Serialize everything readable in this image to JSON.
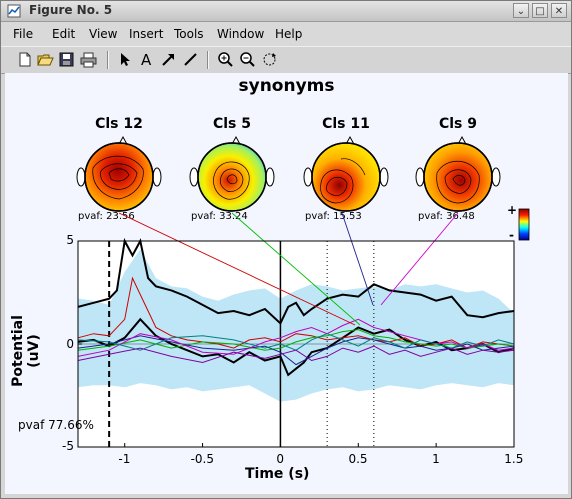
{
  "window": {
    "title": "Figure No. 5",
    "minimize_glyph": "⌄",
    "maximize_glyph": "□",
    "close_glyph": "✕"
  },
  "menubar": {
    "items": [
      "File",
      "Edit",
      "View",
      "Insert",
      "Tools",
      "Window",
      "Help"
    ]
  },
  "toolbar": {
    "tools": [
      "new-file-icon",
      "open-folder-icon",
      "save-icon",
      "print-icon",
      "arrow-pointer-icon",
      "text-icon",
      "draw-arrow-icon",
      "draw-line-icon",
      "zoom-in-icon",
      "zoom-out-icon",
      "rotate-icon"
    ]
  },
  "figure": {
    "title": "synonyms",
    "clusters": [
      {
        "name": "Cls 12",
        "pvaf": "pvaf:  23.56",
        "line_color": "#d00000"
      },
      {
        "name": "Cls 5",
        "pvaf": "pvaf:  33.24",
        "line_color": "#00c000"
      },
      {
        "name": "Cls 11",
        "pvaf": "pvaf:  15.53",
        "line_color": "#202090"
      },
      {
        "name": "Cls 9",
        "pvaf": "pvaf:  36.48",
        "line_color": "#d000d0"
      }
    ],
    "colorbar": {
      "plus": "+",
      "minus": "-"
    },
    "pvaf_total": "pvaf 77.66%"
  },
  "chart_data": {
    "type": "line",
    "xlabel": "Time (s)",
    "ylabel": "Potential (uV)",
    "xlim": [
      -1.3,
      1.5
    ],
    "ylim": [
      -5,
      5
    ],
    "xticks": [
      "-1",
      "-0.5",
      "0",
      "0.5",
      "1",
      "1.5"
    ],
    "xtick_values": [
      -1,
      -0.5,
      0,
      0.5,
      1,
      1.5
    ],
    "yticks": [
      "5",
      "0",
      "-5"
    ],
    "ytick_values": [
      5,
      0,
      -5
    ],
    "vertical_markers": [
      {
        "x": -1.1,
        "style": "dashed"
      },
      {
        "x": 0,
        "style": "solid"
      },
      {
        "x": 0.3,
        "style": "dotted"
      },
      {
        "x": 0.6,
        "style": "dotted"
      }
    ],
    "envelope_upper": {
      "x": [
        -1.3,
        -1.2,
        -1.1,
        -1.0,
        -0.9,
        -0.8,
        -0.7,
        -0.6,
        -0.5,
        -0.4,
        -0.3,
        -0.2,
        -0.1,
        0,
        0.1,
        0.2,
        0.3,
        0.4,
        0.5,
        0.6,
        0.7,
        0.8,
        0.9,
        1.0,
        1.1,
        1.2,
        1.3,
        1.4,
        1.5
      ],
      "y": [
        2.2,
        2.1,
        1.9,
        3.5,
        4.6,
        3.2,
        2.8,
        2.7,
        2.3,
        2.1,
        2.4,
        2.6,
        2.7,
        2.2,
        2.6,
        2.9,
        2.8,
        2.6,
        2.7,
        2.8,
        2.6,
        2.9,
        2.8,
        2.9,
        2.7,
        2.5,
        2.6,
        2.2,
        1.5
      ]
    },
    "envelope_lower": {
      "y": [
        -2.1,
        -2.0,
        -2.0,
        -2.1,
        -1.9,
        -2.0,
        -2.2,
        -2.1,
        -2.3,
        -2.2,
        -2.1,
        -2.0,
        -2.4,
        -2.8,
        -2.7,
        -2.4,
        -2.2,
        -2.1,
        -2.3,
        -2.2,
        -2.0,
        -2.1,
        -2.2,
        -2.0,
        -1.9,
        -2.0,
        -2.1,
        -1.9,
        -2.0
      ]
    },
    "series": [
      {
        "color": "#000000",
        "width": 2,
        "x": [
          -1.3,
          -1.2,
          -1.1,
          -1.05,
          -1.0,
          -0.95,
          -0.9,
          -0.85,
          -0.8,
          -0.7,
          -0.6,
          -0.5,
          -0.4,
          -0.3,
          -0.2,
          -0.1,
          0,
          0.05,
          0.1,
          0.15,
          0.2,
          0.3,
          0.4,
          0.5,
          0.6,
          0.7,
          0.8,
          0.9,
          1.0,
          1.1,
          1.2,
          1.3,
          1.4,
          1.5
        ],
        "y": [
          1.8,
          2.0,
          2.2,
          2.6,
          5.2,
          4.3,
          5.6,
          3.2,
          2.8,
          2.6,
          2.3,
          1.9,
          1.5,
          1.6,
          1.4,
          1.7,
          1.0,
          1.8,
          2.0,
          1.4,
          1.7,
          2.2,
          2.4,
          2.3,
          2.9,
          2.6,
          2.5,
          2.4,
          2.1,
          2.3,
          1.4,
          1.3,
          1.5,
          1.6
        ]
      },
      {
        "color": "#000000",
        "width": 2,
        "x": [
          -1.3,
          -1.2,
          -1.1,
          -1.0,
          -0.9,
          -0.8,
          -0.7,
          -0.6,
          -0.5,
          -0.4,
          -0.3,
          -0.2,
          -0.1,
          0,
          0.05,
          0.1,
          0.15,
          0.2,
          0.3,
          0.4,
          0.5,
          0.6,
          0.7,
          0.8,
          0.9,
          1.0,
          1.1,
          1.2,
          1.3,
          1.4,
          1.5
        ],
        "y": [
          0.1,
          0.2,
          -0.1,
          0.3,
          1.2,
          0.4,
          0.0,
          -0.3,
          -0.6,
          -0.5,
          -0.9,
          -0.4,
          -0.8,
          -0.6,
          -1.5,
          -1.2,
          -0.9,
          -0.4,
          -0.2,
          0.3,
          0.8,
          0.5,
          0.7,
          0.2,
          -0.1,
          0.1,
          -0.3,
          -0.2,
          0.0,
          -0.4,
          -0.2
        ]
      },
      {
        "color": "#d00000",
        "width": 1,
        "x": [
          -1.3,
          -1.2,
          -1.1,
          -1.0,
          -0.95,
          -0.9,
          -0.85,
          -0.8,
          -0.7,
          -0.6,
          -0.5,
          -0.4,
          -0.3,
          -0.2,
          -0.1,
          0,
          0.1,
          0.2,
          0.3,
          0.4,
          0.5,
          0.6,
          0.7,
          0.8,
          0.9,
          1.0,
          1.1,
          1.2,
          1.3,
          1.4,
          1.5
        ],
        "y": [
          0.3,
          0.5,
          0.4,
          1.2,
          3.2,
          2.4,
          1.6,
          0.8,
          0.4,
          0.2,
          0.1,
          0.0,
          -0.2,
          0.2,
          0.3,
          0.1,
          0.5,
          0.4,
          0.2,
          0.3,
          0.4,
          0.2,
          0.1,
          0.3,
          -0.1,
          0.0,
          0.2,
          -0.2,
          0.1,
          0.0,
          -0.1
        ]
      },
      {
        "color": "#00b000",
        "width": 1,
        "x": [
          -1.3,
          -1.1,
          -0.9,
          -0.7,
          -0.5,
          -0.3,
          -0.1,
          0,
          0.1,
          0.2,
          0.3,
          0.4,
          0.5,
          0.6,
          0.7,
          0.8,
          0.9,
          1.0,
          1.1,
          1.2,
          1.3,
          1.4,
          1.5
        ],
        "y": [
          -0.3,
          -0.1,
          0.2,
          -0.2,
          0.1,
          0.0,
          -0.3,
          -0.2,
          0.1,
          0.3,
          0.4,
          0.6,
          0.7,
          0.4,
          0.3,
          0.1,
          0.0,
          -0.1,
          0.0,
          -0.2,
          -0.1,
          0.0,
          -0.1
        ]
      },
      {
        "color": "#202090",
        "width": 1,
        "x": [
          -1.3,
          -1.1,
          -0.9,
          -0.7,
          -0.5,
          -0.3,
          -0.1,
          0,
          0.1,
          0.2,
          0.3,
          0.4,
          0.5,
          0.6,
          0.7,
          0.8,
          0.9,
          1.0,
          1.1,
          1.2,
          1.3,
          1.4,
          1.5
        ],
        "y": [
          -0.2,
          0.0,
          0.4,
          0.1,
          -0.2,
          -0.3,
          -0.1,
          -0.4,
          -1.0,
          -0.6,
          -0.2,
          0.1,
          0.3,
          0.2,
          0.0,
          -0.2,
          -0.1,
          -0.3,
          -0.2,
          0.0,
          -0.3,
          -0.2,
          -0.1
        ]
      },
      {
        "color": "#c000c0",
        "width": 1,
        "x": [
          -1.3,
          -1.1,
          -0.9,
          -0.7,
          -0.5,
          -0.3,
          -0.1,
          0,
          0.1,
          0.2,
          0.3,
          0.4,
          0.5,
          0.6,
          0.7,
          0.8,
          0.9,
          1.0,
          1.1,
          1.2,
          1.3,
          1.4,
          1.5
        ],
        "y": [
          -0.6,
          -0.3,
          0.5,
          0.2,
          -0.4,
          -0.5,
          0.1,
          0.3,
          0.6,
          0.8,
          0.5,
          0.9,
          1.2,
          0.8,
          0.6,
          0.4,
          0.2,
          0.0,
          0.1,
          -0.2,
          0.0,
          -0.3,
          -0.2
        ]
      },
      {
        "color": "#008080",
        "width": 1,
        "x": [
          -1.3,
          -1.1,
          -0.9,
          -0.7,
          -0.5,
          -0.3,
          -0.1,
          0,
          0.1,
          0.2,
          0.3,
          0.4,
          0.5,
          0.6,
          0.7,
          0.8,
          0.9,
          1.0,
          1.1,
          1.2,
          1.3,
          1.4,
          1.5
        ],
        "y": [
          0.2,
          0.1,
          -0.3,
          0.3,
          0.4,
          0.2,
          -0.2,
          0.0,
          -0.3,
          0.2,
          0.5,
          0.2,
          -0.1,
          0.3,
          0.1,
          -0.2,
          0.2,
          0.0,
          -0.2,
          0.1,
          -0.1,
          0.2,
          0.0
        ]
      },
      {
        "color": "#8000a0",
        "width": 1,
        "x": [
          -1.3,
          -1.1,
          -0.9,
          -0.7,
          -0.5,
          -0.3,
          -0.1,
          0,
          0.1,
          0.2,
          0.3,
          0.4,
          0.5,
          0.6,
          0.7,
          0.8,
          0.9,
          1.0,
          1.1,
          1.2,
          1.3,
          1.4,
          1.5
        ],
        "y": [
          -0.8,
          -0.5,
          -0.2,
          -0.6,
          -0.9,
          -0.4,
          -0.7,
          -0.5,
          -0.3,
          -0.8,
          -0.6,
          -0.2,
          -0.4,
          -0.1,
          -0.5,
          -0.3,
          -0.6,
          -0.4,
          -0.2,
          -0.5,
          -0.3,
          -0.4,
          -0.3
        ]
      }
    ]
  }
}
